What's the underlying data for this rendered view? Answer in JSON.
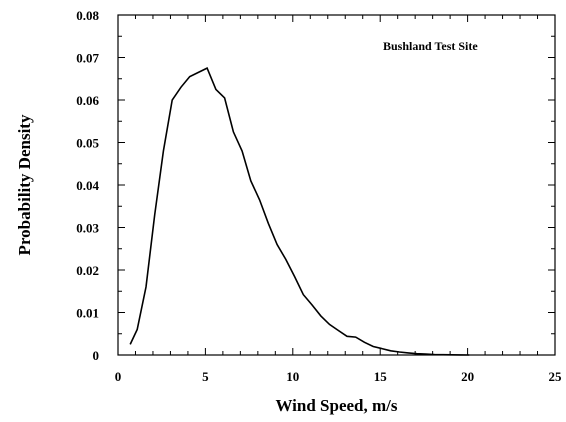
{
  "chart_data": {
    "type": "line",
    "title": "",
    "xlabel": "Wind Speed, m/s",
    "ylabel": "Probability Density",
    "annotation": "Bushland Test Site",
    "xlim": [
      0,
      25
    ],
    "ylim": [
      0,
      0.08
    ],
    "xticks": [
      "0",
      "5",
      "10",
      "15",
      "20",
      "25"
    ],
    "yticks": [
      "0",
      "0.01",
      "0.02",
      "0.03",
      "0.04",
      "0.05",
      "0.06",
      "0.07",
      "0.08"
    ],
    "grid": false,
    "legend": "none",
    "line_color": "#000000",
    "series": [
      {
        "x": [
          0.7,
          1.1,
          1.6,
          2.1,
          2.6,
          3.1,
          3.6,
          4.1,
          4.6,
          5.1,
          5.6,
          6.1,
          6.6,
          7.1,
          7.6,
          8.1,
          8.6,
          9.1,
          9.6,
          10.1,
          10.6,
          11.1,
          11.6,
          12.1,
          12.6,
          13.1,
          13.6,
          14.1,
          14.6,
          15.1,
          15.6,
          16.1,
          16.6,
          17.1,
          17.6,
          18.1,
          18.6,
          19.1,
          19.6,
          20.1
        ],
        "y": [
          0.0025,
          0.006,
          0.016,
          0.033,
          0.048,
          0.06,
          0.063,
          0.0655,
          0.0665,
          0.0675,
          0.0625,
          0.0605,
          0.0525,
          0.048,
          0.041,
          0.0365,
          0.031,
          0.026,
          0.0225,
          0.0185,
          0.0142,
          0.0118,
          0.0092,
          0.0072,
          0.0058,
          0.0044,
          0.0042,
          0.003,
          0.002,
          0.0015,
          0.001,
          0.0007,
          0.0005,
          0.0003,
          0.0002,
          0.00012,
          8e-05,
          5e-05,
          2e-05,
          1e-05
        ]
      }
    ]
  }
}
